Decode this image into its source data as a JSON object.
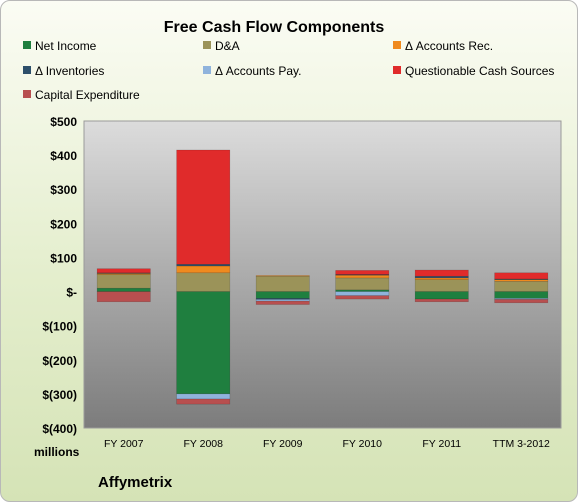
{
  "chart_data": {
    "type": "bar",
    "stacked": true,
    "title": "Free Cash Flow Components",
    "categories": [
      "FY 2007",
      "FY 2008",
      "FY 2009",
      "FY 2010",
      "FY 2011",
      "TTM 3-2012"
    ],
    "ylim": [
      -400,
      500
    ],
    "yticks": [
      -400,
      -300,
      -200,
      -100,
      0,
      100,
      200,
      300,
      400,
      500
    ],
    "ytick_labels": [
      "$(400)",
      "$(300)",
      "$(200)",
      "$(100)",
      "$-",
      "$100",
      "$200",
      "$300",
      "$400",
      "$500"
    ],
    "y_unit_label": "millions",
    "legend_position": "top",
    "grid": false,
    "series": [
      {
        "name": "Net Income",
        "color": "#1f7f3f",
        "values": [
          10,
          -300,
          -20,
          5,
          -22,
          -20
        ]
      },
      {
        "name": "D&A",
        "color": "#9b9359",
        "values": [
          40,
          55,
          45,
          35,
          35,
          30
        ]
      },
      {
        "name": "Δ Accounts Rec.",
        "color": "#ef8a1e",
        "values": [
          3,
          20,
          2,
          8,
          5,
          5
        ]
      },
      {
        "name": "Δ Inventories",
        "color": "#2d4f6a",
        "values": [
          2,
          5,
          -3,
          2,
          5,
          2
        ]
      },
      {
        "name": "Δ Accounts Pay.",
        "color": "#8fb3dc",
        "values": [
          0,
          -15,
          -5,
          -12,
          0,
          -3
        ]
      },
      {
        "name": "Questionable Cash Sources",
        "color": "#e02b2b",
        "values": [
          12,
          335,
          0,
          12,
          18,
          18
        ]
      },
      {
        "name": "Capital Expenditure",
        "color": "#b84f4f",
        "values": [
          -30,
          -15,
          -10,
          -10,
          -8,
          -10
        ]
      }
    ]
  },
  "footer": {
    "company": "Affymetrix"
  }
}
